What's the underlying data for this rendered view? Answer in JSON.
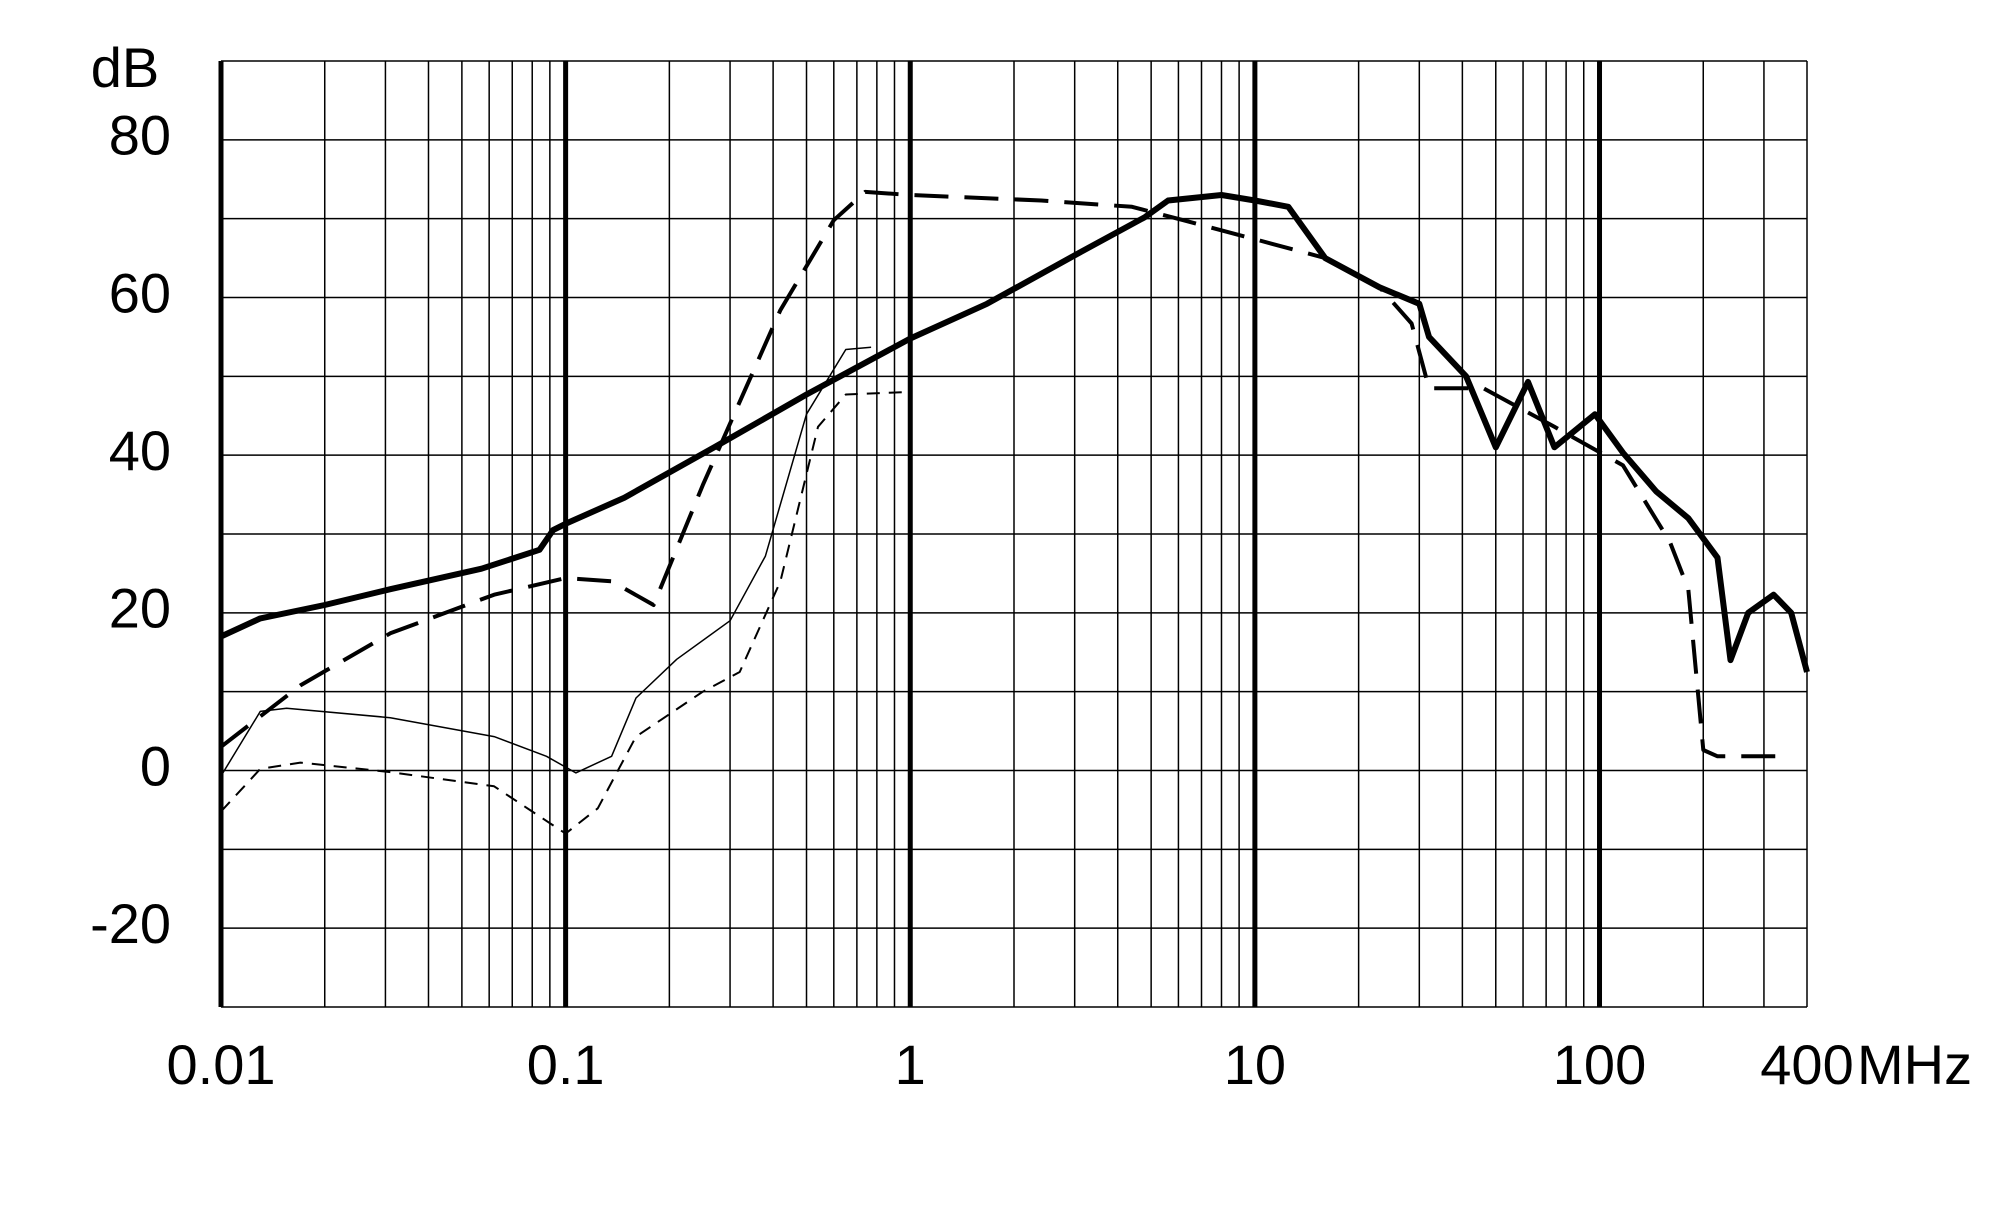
{
  "chart_data": {
    "type": "line",
    "y_label": "dB",
    "x_unit": "MHz",
    "log_x": true,
    "grid": true,
    "xlim": [
      0.01,
      400
    ],
    "ylim": [
      -30,
      90
    ],
    "xticks": [
      0.01,
      0.1,
      1,
      10,
      100,
      400
    ],
    "yticks": [
      -20,
      0,
      20,
      40,
      60,
      80
    ],
    "x_minor_ticks": [
      0.02,
      0.03,
      0.04,
      0.05,
      0.06,
      0.07,
      0.08,
      0.09,
      0.2,
      0.3,
      0.4,
      0.5,
      0.6,
      0.7,
      0.8,
      0.9,
      2,
      3,
      4,
      5,
      6,
      7,
      8,
      9,
      20,
      30,
      40,
      50,
      60,
      70,
      80,
      90,
      200,
      300
    ],
    "y_minor_ticks": [
      -30,
      -10,
      10,
      30,
      50,
      70,
      90
    ],
    "series": [
      {
        "color": "#000000",
        "linewidth": 6,
        "dash": "solid",
        "x": [
          0.01,
          0.013,
          0.02,
          0.031,
          0.057,
          0.084,
          0.092,
          0.1,
          0.148,
          0.27,
          0.5,
          1,
          1.67,
          3.1,
          4.8,
          5.6,
          8,
          10,
          12.5,
          16,
          23,
          30,
          32,
          41,
          50,
          62,
          74,
          97,
          117,
          146,
          181,
          220,
          240,
          270,
          320,
          360,
          400
        ],
        "values": [
          17,
          19.3,
          21,
          23,
          25.6,
          28,
          30.5,
          31.3,
          34.6,
          41,
          47.7,
          54.8,
          59.2,
          65.7,
          70.2,
          72.3,
          73,
          72.3,
          71.5,
          65,
          61.3,
          59.2,
          55,
          50,
          41,
          49.3,
          41,
          45.2,
          40.3,
          35.4,
          32,
          27,
          14,
          20,
          22.3,
          20,
          12.5
        ]
      },
      {
        "color": "#000000",
        "linewidth": 4,
        "dash": "dashed",
        "x": [
          0.01,
          0.017,
          0.031,
          0.062,
          0.1,
          0.136,
          0.18,
          0.25,
          0.42,
          0.6,
          0.74,
          1,
          2.4,
          4.4,
          6.2,
          10,
          16,
          23,
          28.5,
          32,
          46,
          74,
          117,
          160,
          181,
          200,
          220,
          360
        ],
        "values": [
          3,
          10.8,
          17.4,
          22.3,
          24.4,
          24,
          21,
          36.2,
          58.4,
          69.8,
          73.4,
          73,
          72.3,
          71.5,
          69.8,
          67.4,
          65,
          61.3,
          56.7,
          48.5,
          48.5,
          43.6,
          38.7,
          29,
          23,
          2.6,
          1.8,
          1.8
        ]
      },
      {
        "color": "#000000",
        "linewidth": 1.5,
        "dash": "solid",
        "x": [
          0.01,
          0.013,
          0.0155,
          0.031,
          0.062,
          0.088,
          0.107,
          0.136,
          0.16,
          0.21,
          0.3,
          0.38,
          0.5,
          0.65,
          0.77
        ],
        "values": [
          -0.7,
          7.5,
          7.9,
          6.7,
          4.3,
          1.8,
          -0.3,
          1.8,
          9.2,
          14.1,
          19,
          27.2,
          45.2,
          53.4,
          53.7
        ]
      },
      {
        "color": "#000000",
        "linewidth": 2,
        "dash": "short-dashed",
        "x": [
          0.01,
          0.013,
          0.017,
          0.031,
          0.062,
          0.1,
          0.124,
          0.16,
          0.25,
          0.32,
          0.42,
          0.54,
          0.65,
          0.96
        ],
        "values": [
          -5.2,
          0.2,
          1,
          -0.2,
          -2,
          -8,
          -4.8,
          4.3,
          10,
          12.5,
          24,
          43.6,
          47.7,
          48
        ]
      }
    ]
  }
}
